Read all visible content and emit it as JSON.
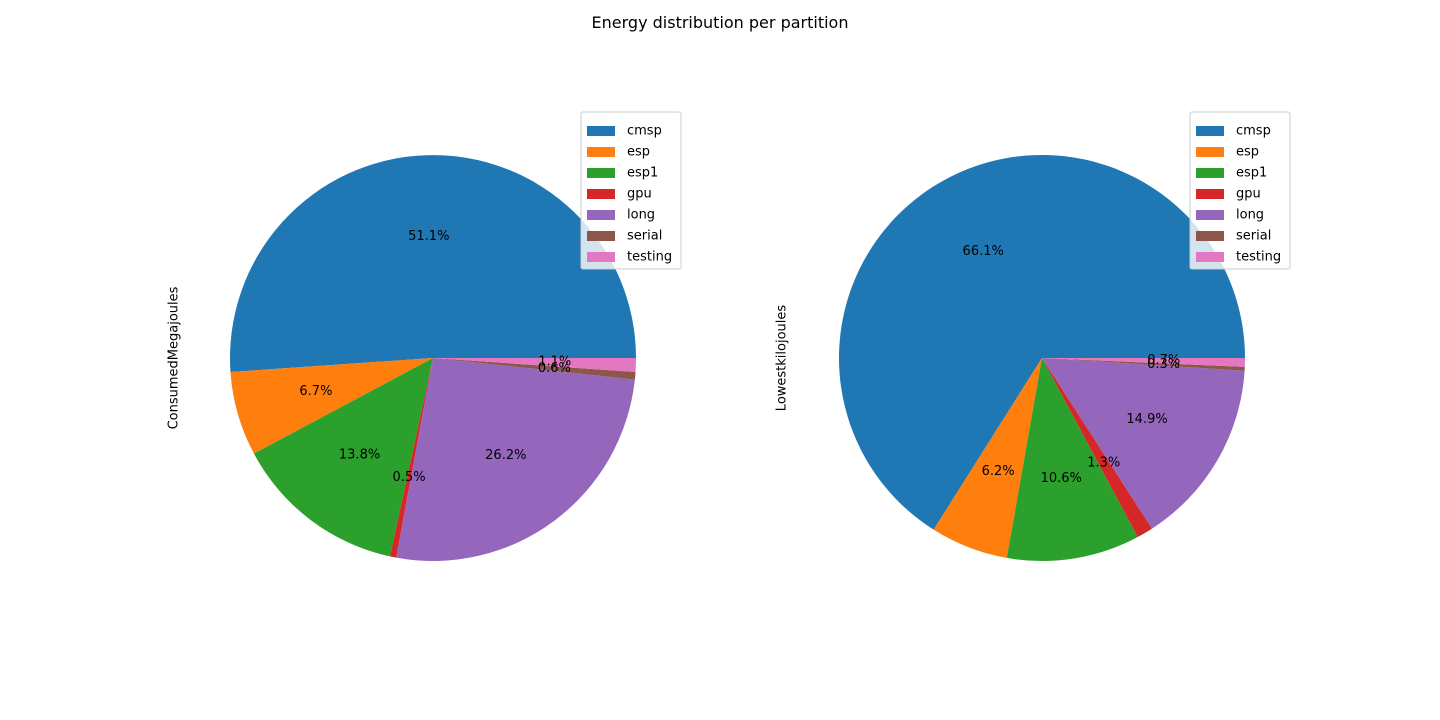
{
  "figure": {
    "title": "Energy distribution per partition"
  },
  "chart_data": [
    {
      "type": "pie",
      "ylabel": "ConsumedMegajoules",
      "categories": [
        "cmsp",
        "esp",
        "esp1",
        "gpu",
        "long",
        "serial",
        "testing"
      ],
      "values": [
        51.1,
        6.7,
        13.8,
        0.5,
        26.2,
        0.6,
        1.1
      ],
      "labels": [
        "51.1%",
        "6.7%",
        "13.8%",
        "0.5%",
        "26.2%",
        "0.6%",
        "1.1%"
      ],
      "colors": [
        "#1f77b4",
        "#ff7f0e",
        "#2ca02c",
        "#d62728",
        "#9467bd",
        "#8c564b",
        "#e377c2"
      ],
      "legend": "top-right"
    },
    {
      "type": "pie",
      "ylabel": "Lowestkilojoules",
      "categories": [
        "cmsp",
        "esp",
        "esp1",
        "gpu",
        "long",
        "serial",
        "testing"
      ],
      "values": [
        66.1,
        6.2,
        10.6,
        1.3,
        14.9,
        0.3,
        0.7
      ],
      "labels": [
        "66.1%",
        "6.2%",
        "10.6%",
        "1.3%",
        "14.9%",
        "0.3%",
        "0.7%"
      ],
      "colors": [
        "#1f77b4",
        "#ff7f0e",
        "#2ca02c",
        "#d62728",
        "#9467bd",
        "#8c564b",
        "#e377c2"
      ],
      "legend": "top-right"
    }
  ]
}
